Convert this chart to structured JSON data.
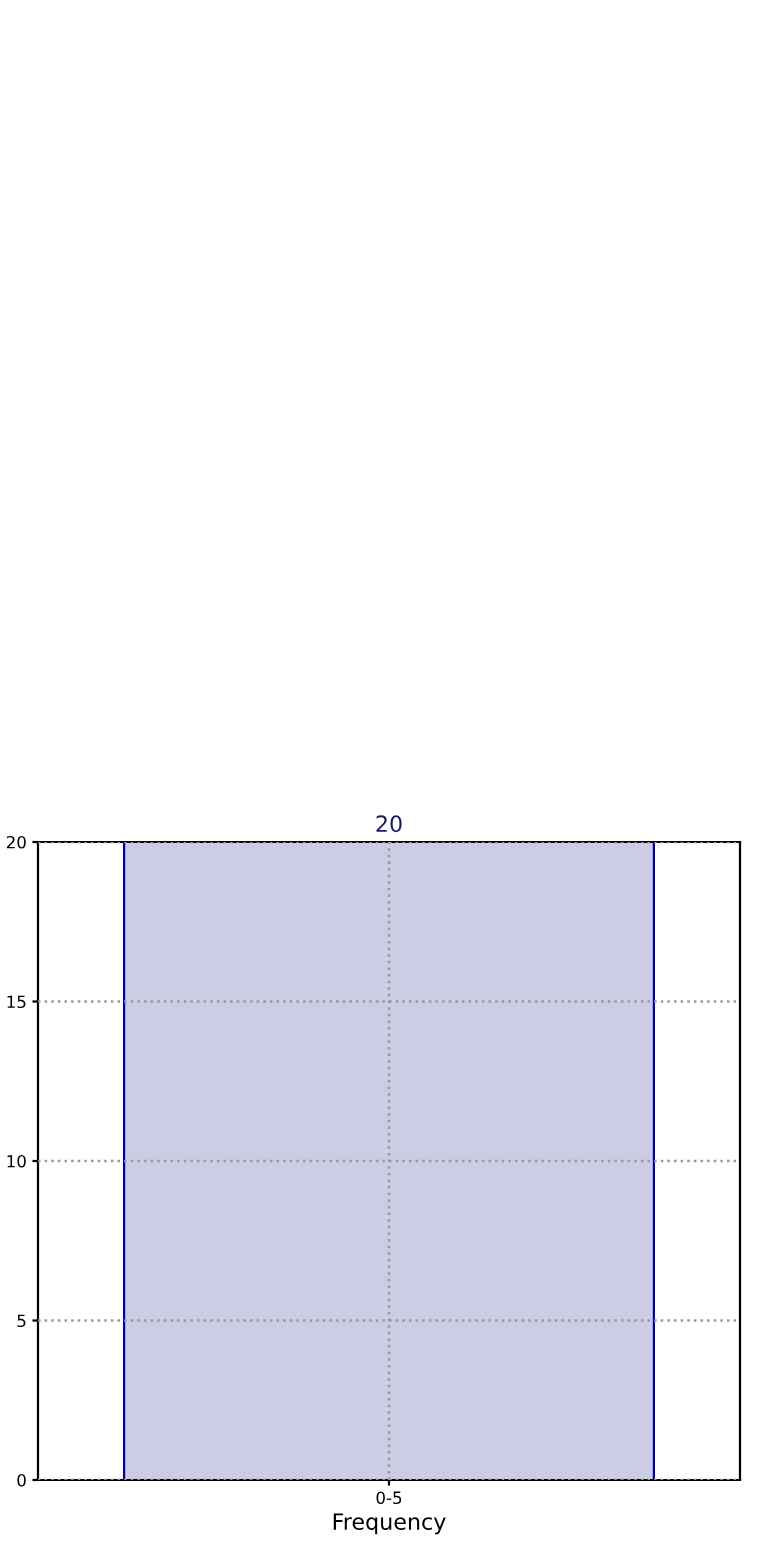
{
  "chart_data": {
    "type": "bar",
    "xlabel": "Frequency",
    "categories": [
      "0-5"
    ],
    "values": [
      20
    ],
    "color": "#cccce5",
    "ylim": [
      0,
      20
    ],
    "yticks": [
      0,
      5,
      10,
      15,
      20
    ],
    "grid": true,
    "line_style": "dotted",
    "data_labels": true
  }
}
